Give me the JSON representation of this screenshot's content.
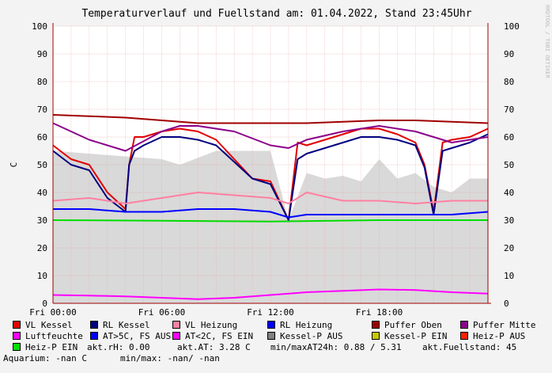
{
  "chart_data": {
    "type": "area",
    "title": "Temperaturverlauf und Fuellstand am: 01.04.2022, Stand 23:45Uhr",
    "ylabel": "C",
    "ylim": [
      0,
      100
    ],
    "y_ticks": [
      "0",
      "10",
      "20",
      "30",
      "40",
      "50",
      "60",
      "70",
      "80",
      "90",
      "100"
    ],
    "x_ticks": [
      {
        "label": "Fri 00:00",
        "h": 0
      },
      {
        "label": "Fri 06:00",
        "h": 6
      },
      {
        "label": "Fri 12:00",
        "h": 12
      },
      {
        "label": "Fri 18:00",
        "h": 18
      }
    ],
    "xlim_hours": [
      0,
      24
    ],
    "grid": true,
    "series": [
      {
        "name": "Fuellstand",
        "color": "#d9d9d9",
        "kind": "area",
        "x": [
          0,
          2,
          4,
          6,
          7,
          9,
          11,
          12,
          13,
          14,
          15,
          16,
          17,
          18,
          19,
          20,
          21,
          22,
          23,
          24
        ],
        "values": [
          55,
          54,
          53,
          52,
          50,
          55,
          55,
          55,
          30,
          47,
          45,
          46,
          44,
          52,
          45,
          47,
          42,
          40,
          45,
          45
        ]
      },
      {
        "name": "VL Kessel",
        "color": "#e00000",
        "x": [
          0,
          1,
          2,
          3,
          4,
          4.2,
          4.5,
          5,
          6,
          7,
          8,
          9,
          10,
          11,
          12,
          13,
          13.5,
          14,
          15,
          16,
          17,
          18,
          19,
          20,
          20.5,
          21,
          21.5,
          22,
          23,
          24
        ],
        "values": [
          57,
          52,
          50,
          40,
          34,
          50,
          60,
          60,
          62,
          63,
          62,
          59,
          52,
          45,
          44,
          30,
          58,
          57,
          59,
          61,
          63,
          63,
          61,
          58,
          50,
          33,
          58,
          59,
          60,
          63
        ]
      },
      {
        "name": "RL Kessel",
        "color": "#000080",
        "x": [
          0,
          1,
          2,
          3,
          4,
          4.2,
          4.5,
          5,
          6,
          7,
          8,
          9,
          10,
          11,
          12,
          13,
          13.5,
          14,
          15,
          16,
          17,
          18,
          19,
          20,
          20.5,
          21,
          21.5,
          22,
          23,
          24
        ],
        "values": [
          55,
          50,
          48,
          38,
          33,
          50,
          55,
          57,
          60,
          60,
          59,
          57,
          51,
          45,
          43,
          30,
          52,
          54,
          56,
          58,
          60,
          60,
          59,
          57,
          49,
          32,
          55,
          56,
          58,
          61
        ]
      },
      {
        "name": "VL Heizung",
        "color": "#ff80a0",
        "x": [
          0,
          2,
          4,
          6,
          8,
          10,
          12,
          13,
          14,
          16,
          18,
          20,
          22,
          24
        ],
        "values": [
          37,
          38,
          36,
          38,
          40,
          39,
          38,
          36,
          40,
          37,
          37,
          36,
          37,
          37
        ]
      },
      {
        "name": "RL Heizung",
        "color": "#0000ff",
        "x": [
          0,
          2,
          4,
          6,
          8,
          10,
          12,
          13,
          14,
          16,
          18,
          20,
          22,
          24
        ],
        "values": [
          34,
          34,
          33,
          33,
          34,
          34,
          33,
          31,
          32,
          32,
          32,
          32,
          32,
          33
        ]
      },
      {
        "name": "Puffer Oben",
        "color": "#a00000",
        "x": [
          0,
          2,
          4,
          6,
          8,
          10,
          12,
          14,
          16,
          18,
          20,
          22,
          24
        ],
        "values": [
          68,
          67.5,
          67,
          66,
          65,
          65,
          65,
          65,
          65.5,
          66,
          66,
          65.5,
          65
        ]
      },
      {
        "name": "Puffer Mitte",
        "color": "#8b008b",
        "x": [
          0,
          2,
          4,
          6,
          7,
          8,
          10,
          12,
          13,
          14,
          16,
          18,
          20,
          22,
          24
        ],
        "values": [
          65,
          59,
          55,
          62,
          64,
          64,
          62,
          57,
          56,
          59,
          62,
          64,
          62,
          58,
          60
        ]
      },
      {
        "name": "Luftfeuchte",
        "color": "#ff00ff",
        "x": [
          0,
          2,
          4,
          6,
          8,
          10,
          12,
          14,
          16,
          18,
          20,
          22,
          24
        ],
        "values": [
          3,
          2.8,
          2.5,
          2,
          1.5,
          2,
          3,
          4,
          4.5,
          5,
          4.8,
          4,
          3.5
        ]
      },
      {
        "name": "Heiz-P EIN",
        "color": "#00dd00",
        "x": [
          0,
          6,
          12,
          18,
          24
        ],
        "values": [
          30,
          29.8,
          29.5,
          30,
          30
        ]
      }
    ]
  },
  "legend": [
    {
      "label": "VL Kessel",
      "color": "#e00000"
    },
    {
      "label": "RL Kessel",
      "color": "#000080"
    },
    {
      "label": "VL Heizung",
      "color": "#ff80a0"
    },
    {
      "label": "RL Heizung",
      "color": "#0000ff"
    },
    {
      "label": "Puffer Oben",
      "color": "#a00000"
    },
    {
      "label": "Puffer Mitte",
      "color": "#8b008b"
    },
    {
      "label": "Luftfeuchte",
      "color": "#ff00ff"
    },
    {
      "label": "AT>5C, FS AUS",
      "color": "#0000ff"
    },
    {
      "label": "AT<2C, FS EIN",
      "color": "#ff00ff"
    },
    {
      "label": "Kessel-P AUS",
      "color": "#808080"
    },
    {
      "label": "Kessel-P EIN",
      "color": "#c8c800"
    },
    {
      "label": "Heiz-P AUS",
      "color": "#ff2000"
    },
    {
      "label": "Heiz-P EIN",
      "color": "#00dd00"
    }
  ],
  "info": {
    "rh": "akt.rH: 0.00",
    "at": "akt.AT: 3.28 C",
    "minmax_at": "min/maxAT24h: 0.88 / 5.31",
    "fuellstand": "akt.Fuellstand:   45",
    "aquarium": "Aquarium: -nan C",
    "aquarium_minmax": "min/max: -nan/ -nan"
  },
  "credit": "RRDTOOL / TOBI OETIKER"
}
